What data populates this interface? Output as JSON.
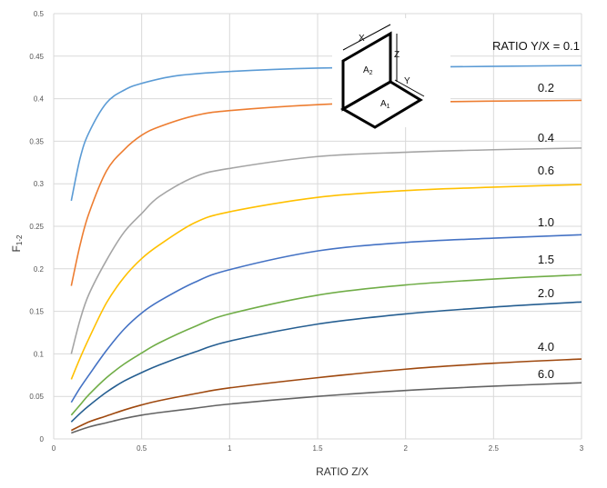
{
  "chart_data": {
    "type": "line",
    "xlabel": "RATIO Z/X",
    "ylabel": "F",
    "ylabel_sub": "1-2",
    "xlim": [
      0,
      3
    ],
    "ylim": [
      0,
      0.5
    ],
    "x_ticks": [
      "0",
      "0.5",
      "1",
      "1.5",
      "2",
      "2.5",
      "3"
    ],
    "y_ticks": [
      "0",
      "0.05",
      "0.1",
      "0.15",
      "0.2",
      "0.25",
      "0.3",
      "0.35",
      "0.4",
      "0.45",
      "0.5"
    ],
    "grid": true,
    "series": [
      {
        "name": "RATIO Y/X = 0.1",
        "color": "#5b9bd5",
        "x": [
          0.1,
          0.15,
          0.2,
          0.3,
          0.4,
          0.5,
          0.7,
          1.0,
          1.5,
          2.0,
          3.0
        ],
        "y": [
          0.28,
          0.33,
          0.36,
          0.395,
          0.41,
          0.418,
          0.427,
          0.432,
          0.436,
          0.437,
          0.439
        ]
      },
      {
        "name": "0.2",
        "color": "#ed7d31",
        "x": [
          0.1,
          0.15,
          0.2,
          0.3,
          0.4,
          0.5,
          0.6,
          0.8,
          1.0,
          1.5,
          2.0,
          3.0
        ],
        "y": [
          0.18,
          0.228,
          0.265,
          0.315,
          0.34,
          0.357,
          0.367,
          0.38,
          0.386,
          0.393,
          0.396,
          0.398
        ]
      },
      {
        "name": "0.4",
        "color": "#a5a5a5",
        "x": [
          0.1,
          0.15,
          0.2,
          0.3,
          0.4,
          0.5,
          0.6,
          0.8,
          1.0,
          1.5,
          2.0,
          2.5,
          3.0
        ],
        "y": [
          0.1,
          0.14,
          0.17,
          0.21,
          0.243,
          0.265,
          0.285,
          0.308,
          0.318,
          0.332,
          0.337,
          0.34,
          0.342
        ]
      },
      {
        "name": "0.6",
        "color": "#ffc000",
        "x": [
          0.1,
          0.15,
          0.2,
          0.3,
          0.4,
          0.5,
          0.6,
          0.8,
          1.0,
          1.5,
          2.0,
          2.5,
          3.0
        ],
        "y": [
          0.07,
          0.095,
          0.118,
          0.16,
          0.19,
          0.212,
          0.228,
          0.254,
          0.267,
          0.284,
          0.292,
          0.296,
          0.299
        ]
      },
      {
        "name": "1.0",
        "color": "#4472c4",
        "x": [
          0.1,
          0.15,
          0.2,
          0.3,
          0.4,
          0.5,
          0.6,
          0.8,
          1.0,
          1.5,
          2.0,
          2.5,
          3.0
        ],
        "y": [
          0.043,
          0.06,
          0.075,
          0.104,
          0.129,
          0.148,
          0.162,
          0.184,
          0.199,
          0.221,
          0.231,
          0.236,
          0.24
        ]
      },
      {
        "name": "1.5",
        "color": "#70ad47",
        "x": [
          0.1,
          0.15,
          0.2,
          0.3,
          0.4,
          0.5,
          0.6,
          0.8,
          1.0,
          1.5,
          2.0,
          2.5,
          3.0
        ],
        "y": [
          0.028,
          0.04,
          0.052,
          0.072,
          0.088,
          0.101,
          0.113,
          0.132,
          0.147,
          0.169,
          0.181,
          0.188,
          0.193
        ]
      },
      {
        "name": "2.0",
        "color": "#255e91",
        "x": [
          0.1,
          0.15,
          0.2,
          0.3,
          0.4,
          0.5,
          0.6,
          0.8,
          1.0,
          1.5,
          2.0,
          2.5,
          3.0
        ],
        "y": [
          0.02,
          0.03,
          0.039,
          0.055,
          0.068,
          0.078,
          0.087,
          0.102,
          0.115,
          0.135,
          0.147,
          0.155,
          0.161
        ]
      },
      {
        "name": "4.0",
        "color": "#9e480e",
        "x": [
          0.1,
          0.2,
          0.3,
          0.4,
          0.5,
          0.6,
          0.8,
          1.0,
          1.5,
          2.0,
          2.5,
          3.0
        ],
        "y": [
          0.01,
          0.02,
          0.027,
          0.034,
          0.04,
          0.045,
          0.053,
          0.06,
          0.072,
          0.082,
          0.089,
          0.094
        ]
      },
      {
        "name": "6.0",
        "color": "#636363",
        "x": [
          0.1,
          0.2,
          0.3,
          0.4,
          0.5,
          0.6,
          0.8,
          1.0,
          1.5,
          2.0,
          2.5,
          3.0
        ],
        "y": [
          0.007,
          0.014,
          0.019,
          0.024,
          0.028,
          0.031,
          0.036,
          0.041,
          0.05,
          0.057,
          0.062,
          0.066
        ]
      }
    ],
    "inset_diagram": {
      "labels": [
        "X",
        "Z",
        "Y",
        "A",
        "A"
      ],
      "subscripts": [
        "",
        "",
        "",
        "2",
        "1"
      ]
    }
  }
}
